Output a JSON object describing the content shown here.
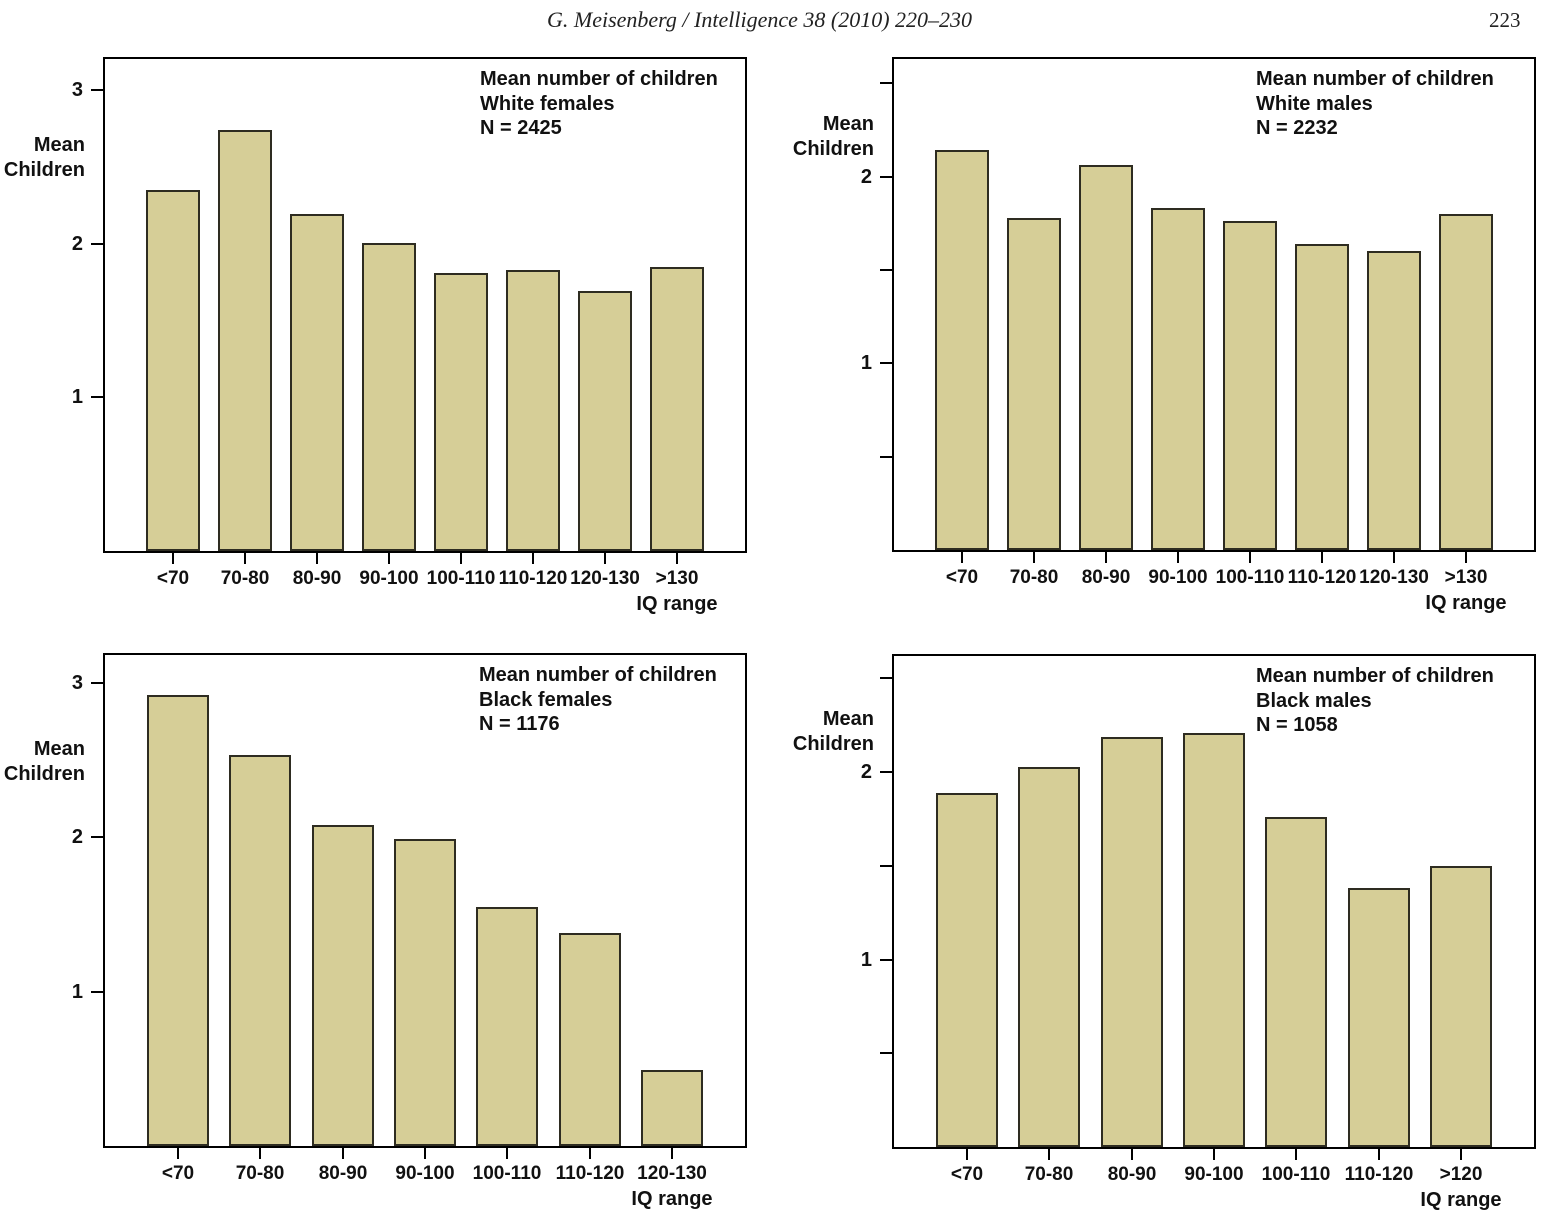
{
  "page": {
    "header": "G. Meisenberg / Intelligence 38 (2010) 220–230",
    "page_number": "223"
  },
  "colors": {
    "bar_fill": "#d6ce97",
    "bar_border": "#2e2c21",
    "axis": "#000000"
  },
  "chart_data": [
    {
      "id": "white-females",
      "type": "bar",
      "title": "Mean number of children",
      "subtitle": "White females",
      "n_label": "N = 2425",
      "ylabel_lines": [
        "Mean",
        "Children"
      ],
      "xlabel": "IQ range",
      "categories": [
        "<70",
        "70-80",
        "80-90",
        "90-100",
        "100-110",
        "110-120",
        "120-130",
        ">130"
      ],
      "values": [
        2.35,
        2.74,
        2.19,
        2.0,
        1.81,
        1.83,
        1.69,
        1.85
      ],
      "ylim": [
        0,
        3.2
      ],
      "yticks_labeled": [
        1,
        2,
        3
      ],
      "yticks_minor": [],
      "grid": false,
      "legend": false
    },
    {
      "id": "white-males",
      "type": "bar",
      "title": "Mean number of children",
      "subtitle": "White males",
      "n_label": "N = 2232",
      "ylabel_lines": [
        "Mean",
        "Children"
      ],
      "xlabel": "IQ range",
      "categories": [
        "<70",
        "70-80",
        "80-90",
        "90-100",
        "100-110",
        "110-120",
        "120-130",
        ">130"
      ],
      "values": [
        2.14,
        1.78,
        2.06,
        1.83,
        1.76,
        1.64,
        1.6,
        1.8
      ],
      "ylim": [
        0,
        2.63
      ],
      "yticks_labeled": [
        1,
        2
      ],
      "yticks_minor": [
        0.5,
        1.5,
        2.5
      ],
      "grid": false,
      "legend": false
    },
    {
      "id": "black-females",
      "type": "bar",
      "title": "Mean number of children",
      "subtitle": "Black females",
      "n_label": "N = 1176",
      "ylabel_lines": [
        "Mean",
        "Children"
      ],
      "xlabel": "IQ range",
      "categories": [
        "<70",
        "70-80",
        "80-90",
        "90-100",
        "100-110",
        "110-120",
        "120-130"
      ],
      "values": [
        2.92,
        2.53,
        2.08,
        1.99,
        1.55,
        1.38,
        0.49
      ],
      "ylim": [
        0,
        3.18
      ],
      "yticks_labeled": [
        1,
        2,
        3
      ],
      "yticks_minor": [],
      "grid": false,
      "legend": false
    },
    {
      "id": "black-males",
      "type": "bar",
      "title": "Mean number of children",
      "subtitle": "Black males",
      "n_label": "N = 1058",
      "ylabel_lines": [
        "Mean",
        "Children"
      ],
      "xlabel": "IQ range",
      "categories": [
        "<70",
        "70-80",
        "80-90",
        "90-100",
        "100-110",
        "110-120",
        ">120"
      ],
      "values": [
        1.89,
        2.03,
        2.19,
        2.21,
        1.76,
        1.38,
        1.5
      ],
      "ylim": [
        0,
        2.62
      ],
      "yticks_labeled": [
        1,
        2
      ],
      "yticks_minor": [
        0.5,
        1.5,
        2.5
      ],
      "grid": false,
      "legend": false
    }
  ]
}
